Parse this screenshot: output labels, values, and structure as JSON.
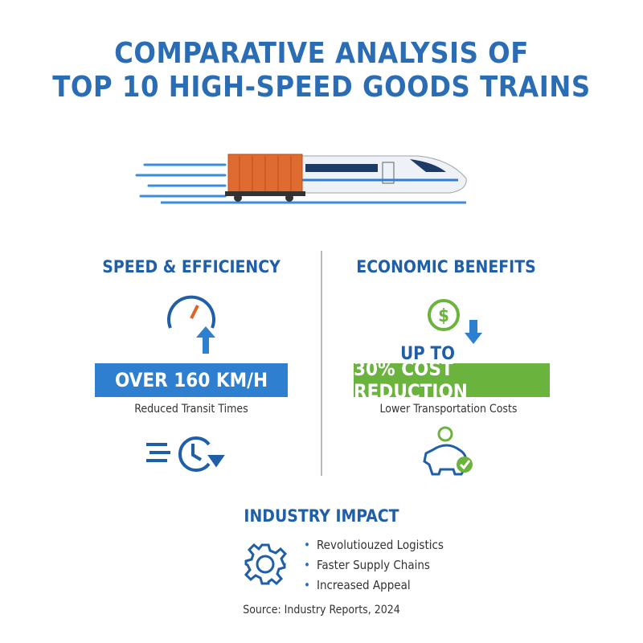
{
  "header": {
    "title_lines": [
      "COMPARATIVE ANALYSIS OF",
      "TOP 10 HIGH-SPEED GOODS TRAINS"
    ]
  },
  "speed": {
    "heading": "SPEED & EFFICIENCY",
    "highlight": "OVER 160 KM/H",
    "caption": "Reduced Transit Times"
  },
  "economic": {
    "heading": "ECONOMIC BENEFITS",
    "prefix": "UP TO",
    "highlight": "30% COST REDUCTION",
    "caption": "Lower Transportation Costs"
  },
  "impact": {
    "heading": "INDUSTRY IMPACT",
    "items": [
      "Revolutiouzed Logistics",
      "Faster Supply Chains",
      "Increased Appeal"
    ]
  },
  "footer": {
    "source": "Source: Industry Reports, 2024"
  }
}
